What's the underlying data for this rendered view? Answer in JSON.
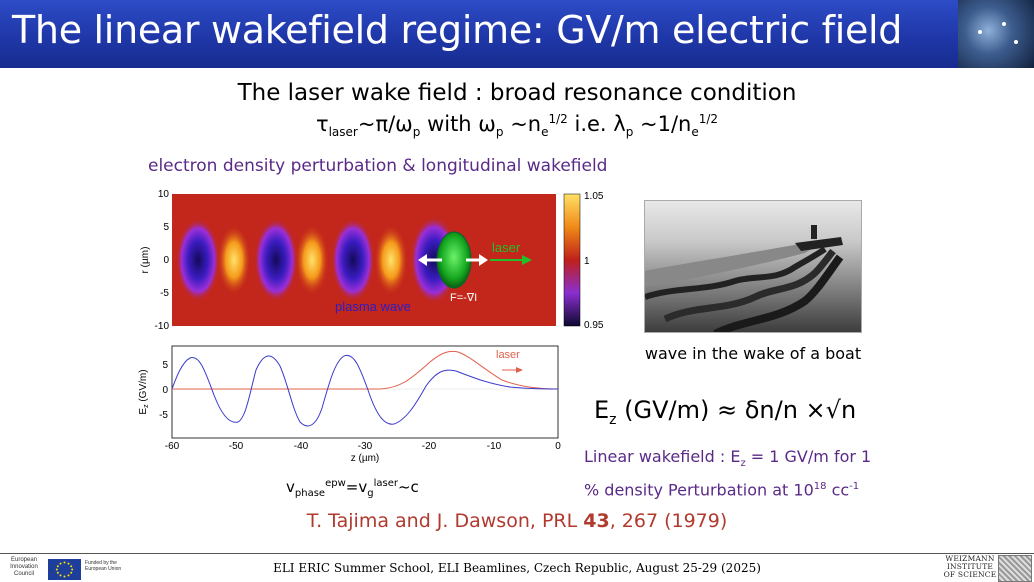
{
  "header": {
    "title": "The linear wakefield regime: GV/m electric field"
  },
  "subtitle": "The laser wake field : broad resonance condition",
  "condition": {
    "tau": "τ",
    "laser_sub": "laser",
    "relation1": "~π/ω",
    "p_sub": "p",
    "with": " with ω",
    "relation2": " ~n",
    "e_sub": "e",
    "half": "1/2",
    "ie": " i.e. λ",
    "relation3": " ~1/n"
  },
  "density_label": "electron density perturbation & longitudinal wakefield",
  "wake_plot": {
    "y_axis_label": "r (µm)",
    "y_ticks": [
      "10",
      "5",
      "0",
      "-5",
      "-10"
    ],
    "colorbar_ticks": [
      "1.05",
      "1",
      "0.95"
    ],
    "laser_label": "laser",
    "force_label": "F=-∇I",
    "plasma_label": "plasma wave"
  },
  "field_plot": {
    "y_axis_label": "E",
    "y_axis_sub": "z",
    "y_axis_unit": " (GV/m)",
    "x_axis_label": "z (µm)",
    "x_ticks": [
      "-60",
      "-50",
      "-40",
      "-30",
      "-20",
      "-10",
      "0"
    ],
    "y_ticks": [
      "5",
      "0",
      "-5"
    ],
    "laser_label": "laser"
  },
  "boat": {
    "caption": "wave in the wake of a boat"
  },
  "formula": {
    "E": "E",
    "sub": "z",
    "rest": " (GV/m) ≈ δn/n ×√n"
  },
  "linear": {
    "line1_a": "Linear wakefield : E",
    "line1_sub": "z",
    "line1_b": " = 1 GV/m for 1",
    "line2_a": "%  density Perturbation at 10",
    "line2_sup": "18",
    "line2_b": " cc",
    "line2_sup2": "-1"
  },
  "vphase": {
    "v": "v",
    "phase": "phase",
    "epw": "epw",
    "eq": "=v",
    "g": "g",
    "laser": "laser",
    "c": "~c"
  },
  "reference": {
    "authors": "T. Tajima and J. Dawson, PRL ",
    "volume": "43",
    "pages": ", 267 (1979)"
  },
  "footer": {
    "text": "ELI ERIC Summer School, ELI Beamlines, Czech Republic, August 25-29 (2025)",
    "erc": "European Innovation Council",
    "eu": "Funded by the European Union",
    "weizmann": "WEIZMANN INSTITUTE OF SCIENCE"
  },
  "colors": {
    "title_bar": "#1f37a8",
    "purple_text": "#5a2a87",
    "reference_red": "#b03a2e",
    "laser_green": "#22c02a"
  }
}
